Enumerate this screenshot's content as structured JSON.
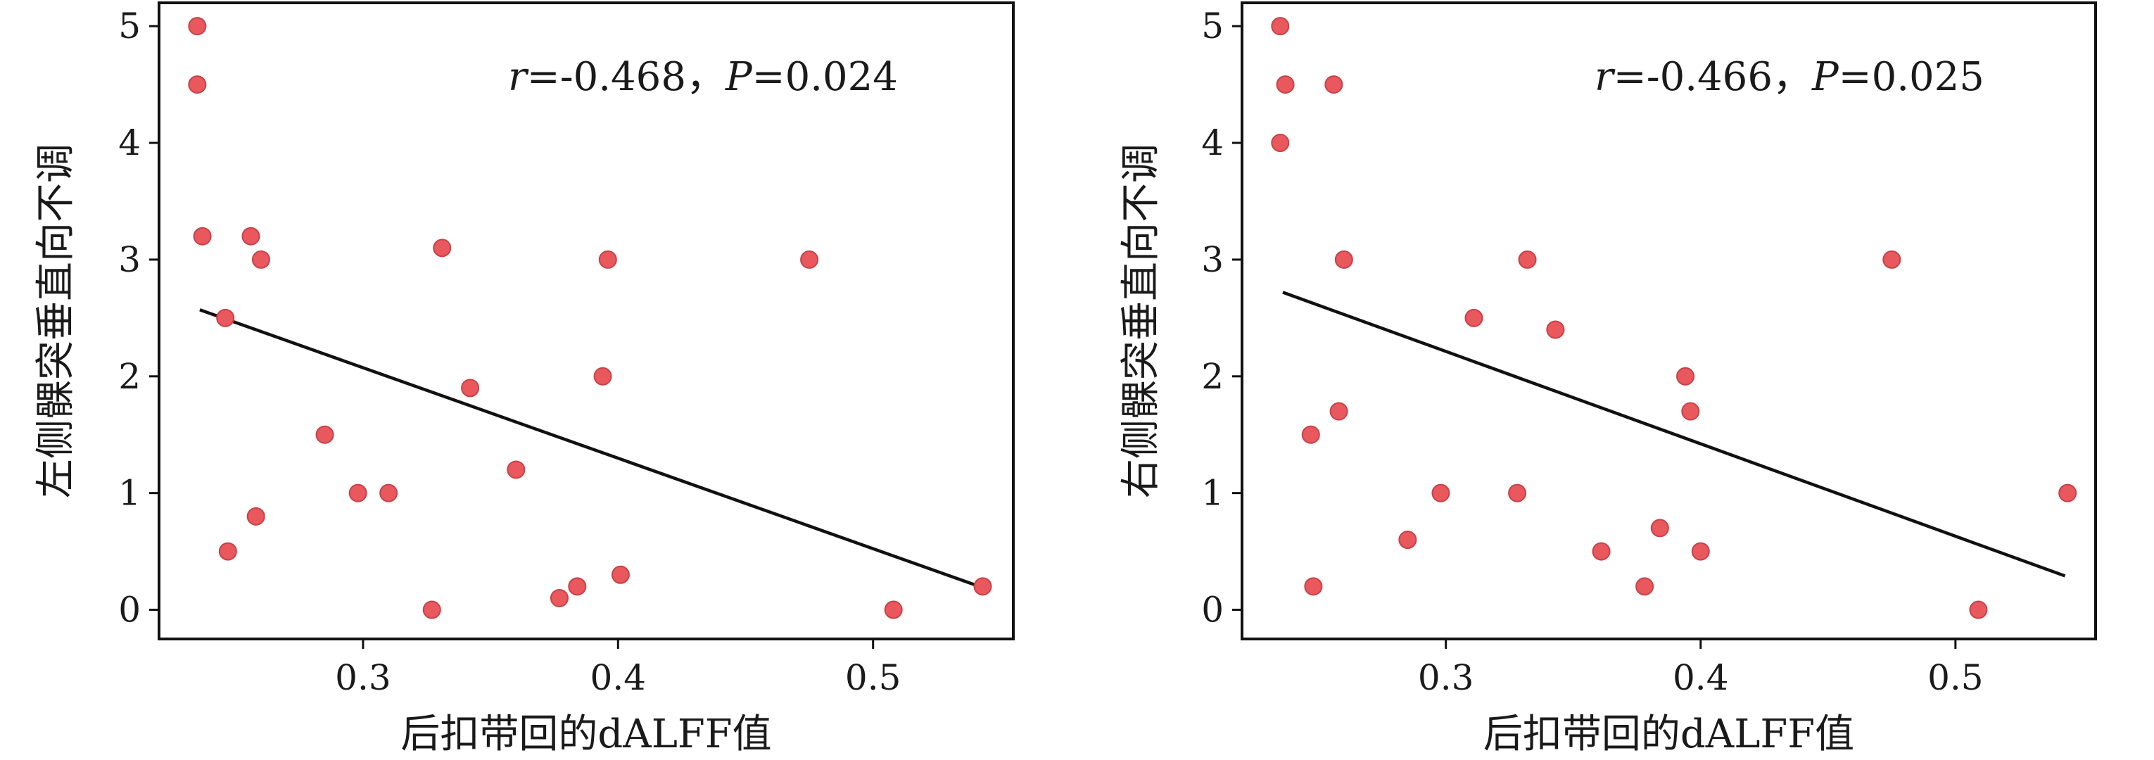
{
  "chart_data": [
    {
      "type": "scatter",
      "xlabel": "后扣带回的dALFF值",
      "ylabel": "左侧髁突垂直向不调",
      "xlim": [
        0.22,
        0.555
      ],
      "ylim": [
        -0.25,
        5.2
      ],
      "xticks": [
        0.3,
        0.4,
        0.5
      ],
      "xtick_labels": [
        "0.3",
        "0.4",
        "0.5"
      ],
      "yticks": [
        0,
        1,
        2,
        3,
        4,
        5
      ],
      "ytick_labels": [
        "0",
        "1",
        "2",
        "3",
        "4",
        "5"
      ],
      "grid": false,
      "annotation": {
        "r_symbol": "r",
        "r_value": "=-0.468，",
        "p_symbol": "P",
        "p_value": "=0.024"
      },
      "fit_line": {
        "x": [
          0.236,
          0.543
        ],
        "y": [
          2.57,
          0.19
        ]
      },
      "points": [
        {
          "x": 0.235,
          "y": 5.0
        },
        {
          "x": 0.235,
          "y": 4.5
        },
        {
          "x": 0.237,
          "y": 3.2
        },
        {
          "x": 0.256,
          "y": 3.2
        },
        {
          "x": 0.26,
          "y": 3.0
        },
        {
          "x": 0.246,
          "y": 2.5
        },
        {
          "x": 0.285,
          "y": 1.5
        },
        {
          "x": 0.298,
          "y": 1.0
        },
        {
          "x": 0.31,
          "y": 1.0
        },
        {
          "x": 0.258,
          "y": 0.8
        },
        {
          "x": 0.247,
          "y": 0.5
        },
        {
          "x": 0.327,
          "y": 0.0
        },
        {
          "x": 0.331,
          "y": 3.1
        },
        {
          "x": 0.342,
          "y": 1.9
        },
        {
          "x": 0.36,
          "y": 1.2
        },
        {
          "x": 0.377,
          "y": 0.1
        },
        {
          "x": 0.384,
          "y": 0.2
        },
        {
          "x": 0.394,
          "y": 2.0
        },
        {
          "x": 0.396,
          "y": 3.0
        },
        {
          "x": 0.401,
          "y": 0.3
        },
        {
          "x": 0.475,
          "y": 3.0
        },
        {
          "x": 0.508,
          "y": 0.0
        },
        {
          "x": 0.543,
          "y": 0.2
        }
      ]
    },
    {
      "type": "scatter",
      "xlabel": "后扣带回的dALFF值",
      "ylabel": "右侧髁突垂直向不调",
      "xlim": [
        0.22,
        0.555
      ],
      "ylim": [
        -0.25,
        5.2
      ],
      "xticks": [
        0.3,
        0.4,
        0.5
      ],
      "xtick_labels": [
        "0.3",
        "0.4",
        "0.5"
      ],
      "yticks": [
        0,
        1,
        2,
        3,
        4,
        5
      ],
      "ytick_labels": [
        "0",
        "1",
        "2",
        "3",
        "4",
        "5"
      ],
      "grid": false,
      "annotation": {
        "r_symbol": "r",
        "r_value": "=-0.466，",
        "p_symbol": "P",
        "p_value": "=0.025"
      },
      "fit_line": {
        "x": [
          0.236,
          0.543
        ],
        "y": [
          2.72,
          0.29
        ]
      },
      "points": [
        {
          "x": 0.235,
          "y": 5.0
        },
        {
          "x": 0.237,
          "y": 4.5
        },
        {
          "x": 0.235,
          "y": 4.0
        },
        {
          "x": 0.256,
          "y": 4.5
        },
        {
          "x": 0.26,
          "y": 3.0
        },
        {
          "x": 0.258,
          "y": 1.7
        },
        {
          "x": 0.247,
          "y": 1.5
        },
        {
          "x": 0.248,
          "y": 0.2
        },
        {
          "x": 0.285,
          "y": 0.6
        },
        {
          "x": 0.298,
          "y": 1.0
        },
        {
          "x": 0.311,
          "y": 2.5
        },
        {
          "x": 0.328,
          "y": 1.0
        },
        {
          "x": 0.332,
          "y": 3.0
        },
        {
          "x": 0.343,
          "y": 2.4
        },
        {
          "x": 0.361,
          "y": 0.5
        },
        {
          "x": 0.378,
          "y": 0.2
        },
        {
          "x": 0.384,
          "y": 0.7
        },
        {
          "x": 0.394,
          "y": 2.0
        },
        {
          "x": 0.396,
          "y": 1.7
        },
        {
          "x": 0.4,
          "y": 0.5
        },
        {
          "x": 0.475,
          "y": 3.0
        },
        {
          "x": 0.509,
          "y": 0.0
        },
        {
          "x": 0.544,
          "y": 1.0
        }
      ]
    }
  ]
}
